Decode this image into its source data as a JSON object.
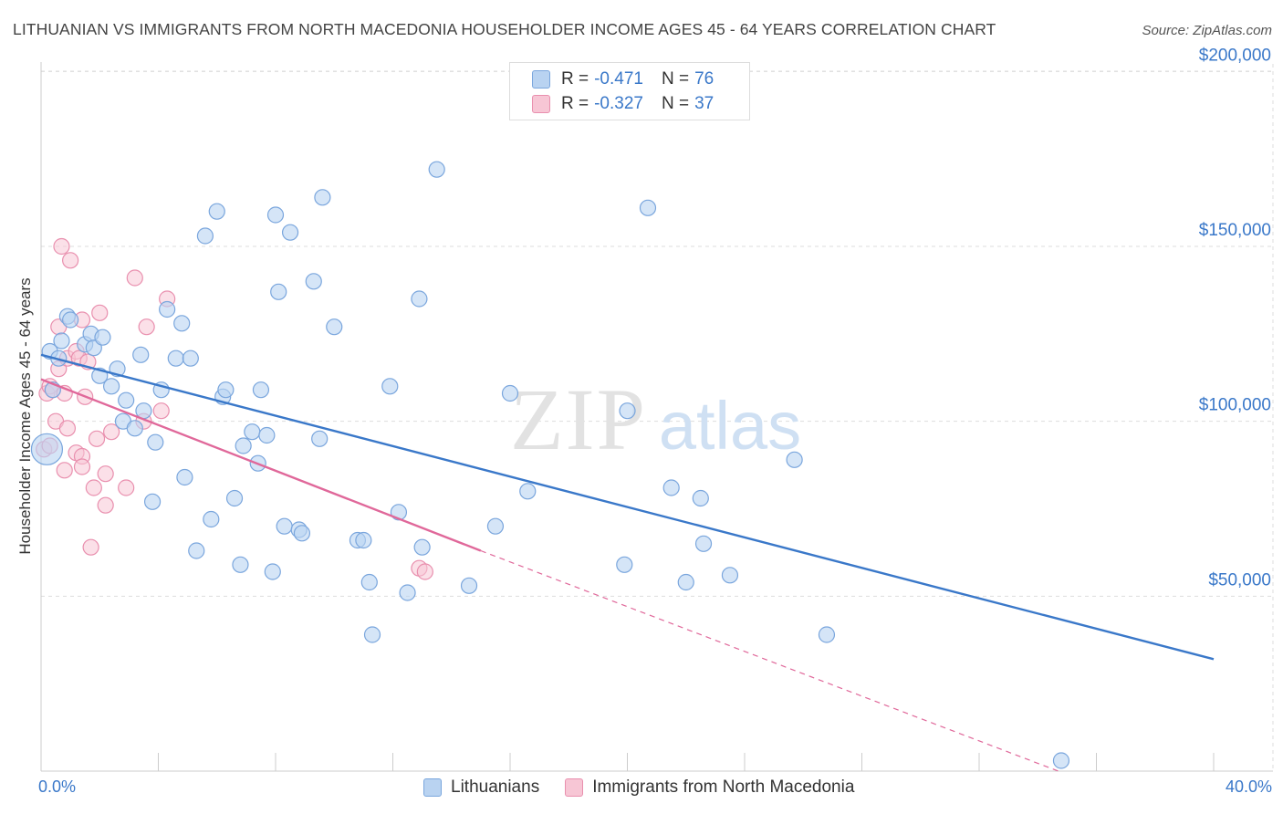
{
  "title": "LITHUANIAN VS IMMIGRANTS FROM NORTH MACEDONIA HOUSEHOLDER INCOME AGES 45 - 64 YEARS CORRELATION CHART",
  "source": "Source: ZipAtlas.com",
  "watermark": {
    "zip": "ZIP",
    "atlas": "atlas"
  },
  "colors": {
    "blue_fill": "#b9d3f1",
    "blue_stroke": "#7aa6dd",
    "blue_line": "#3a78c9",
    "pink_fill": "#f7c6d5",
    "pink_stroke": "#e98fae",
    "pink_line": "#e0689a",
    "grid": "#dddddd",
    "axis_text": "#3a78c9"
  },
  "legend_top": [
    {
      "r_label": "R =",
      "r_value": "-0.471",
      "n_label": "N =",
      "n_value": "76"
    },
    {
      "r_label": "R =",
      "r_value": "-0.327",
      "n_label": "N =",
      "n_value": "37"
    }
  ],
  "legend_bottom": [
    "Lithuanians",
    "Immigrants from North Macedonia"
  ],
  "chart_data": {
    "type": "scatter",
    "title": "LITHUANIAN VS IMMIGRANTS FROM NORTH MACEDONIA HOUSEHOLDER INCOME AGES 45 - 64 YEARS CORRELATION CHART",
    "xlabel": "",
    "ylabel": "Householder Income Ages 45 - 64 years",
    "xlim": [
      0,
      40
    ],
    "ylim": [
      0,
      210000
    ],
    "x_tick_labels": [
      "0.0%",
      "40.0%"
    ],
    "y_ticks": [
      50000,
      100000,
      150000,
      200000
    ],
    "y_tick_labels": [
      "$50,000",
      "$100,000",
      "$150,000",
      "$200,000"
    ],
    "grid": true,
    "legend": "bottom-center",
    "series": [
      {
        "name": "Lithuanians",
        "r": -0.471,
        "n": 76,
        "trend": {
          "x": [
            0,
            40
          ],
          "y": [
            119000,
            32000
          ]
        },
        "points": [
          [
            0.2,
            92000
          ],
          [
            0.3,
            120000
          ],
          [
            0.4,
            109000
          ],
          [
            0.6,
            118000
          ],
          [
            0.7,
            123000
          ],
          [
            0.9,
            130000
          ],
          [
            1.0,
            129000
          ],
          [
            1.5,
            122000
          ],
          [
            1.7,
            125000
          ],
          [
            1.8,
            121000
          ],
          [
            2.1,
            124000
          ],
          [
            2.0,
            113000
          ],
          [
            2.4,
            110000
          ],
          [
            2.6,
            115000
          ],
          [
            2.9,
            106000
          ],
          [
            2.8,
            100000
          ],
          [
            3.2,
            98000
          ],
          [
            3.4,
            119000
          ],
          [
            3.5,
            103000
          ],
          [
            3.8,
            77000
          ],
          [
            3.9,
            94000
          ],
          [
            4.1,
            109000
          ],
          [
            4.3,
            132000
          ],
          [
            4.6,
            118000
          ],
          [
            4.8,
            128000
          ],
          [
            4.9,
            84000
          ],
          [
            5.1,
            118000
          ],
          [
            5.3,
            63000
          ],
          [
            5.6,
            153000
          ],
          [
            5.8,
            72000
          ],
          [
            6.0,
            160000
          ],
          [
            6.2,
            107000
          ],
          [
            6.3,
            109000
          ],
          [
            6.6,
            78000
          ],
          [
            6.8,
            59000
          ],
          [
            6.9,
            93000
          ],
          [
            7.2,
            97000
          ],
          [
            7.4,
            88000
          ],
          [
            7.5,
            109000
          ],
          [
            7.7,
            96000
          ],
          [
            7.9,
            57000
          ],
          [
            8.0,
            159000
          ],
          [
            8.1,
            137000
          ],
          [
            8.3,
            70000
          ],
          [
            8.5,
            154000
          ],
          [
            8.8,
            69000
          ],
          [
            8.9,
            68000
          ],
          [
            9.3,
            140000
          ],
          [
            9.5,
            95000
          ],
          [
            9.6,
            164000
          ],
          [
            10.0,
            127000
          ],
          [
            10.8,
            66000
          ],
          [
            11.0,
            66000
          ],
          [
            11.2,
            54000
          ],
          [
            11.3,
            39000
          ],
          [
            11.9,
            110000
          ],
          [
            12.2,
            74000
          ],
          [
            12.5,
            51000
          ],
          [
            12.9,
            135000
          ],
          [
            13.0,
            64000
          ],
          [
            13.5,
            172000
          ],
          [
            14.6,
            53000
          ],
          [
            15.5,
            70000
          ],
          [
            16.0,
            108000
          ],
          [
            16.6,
            80000
          ],
          [
            19.9,
            59000
          ],
          [
            20.0,
            103000
          ],
          [
            20.7,
            161000
          ],
          [
            21.5,
            81000
          ],
          [
            22.0,
            54000
          ],
          [
            22.5,
            78000
          ],
          [
            22.6,
            65000
          ],
          [
            23.5,
            56000
          ],
          [
            25.7,
            89000
          ],
          [
            26.8,
            39000
          ],
          [
            34.8,
            3000
          ]
        ]
      },
      {
        "name": "Immigrants from North Macedonia",
        "r": -0.327,
        "n": 37,
        "trend": {
          "x": [
            0,
            15.0
          ],
          "y": [
            112000,
            63000
          ],
          "dashed_to": {
            "x": 34.7,
            "y": 0
          }
        },
        "points": [
          [
            0.1,
            92000
          ],
          [
            0.2,
            108000
          ],
          [
            0.3,
            110000
          ],
          [
            0.4,
            109000
          ],
          [
            0.5,
            100000
          ],
          [
            0.6,
            127000
          ],
          [
            0.6,
            115000
          ],
          [
            0.7,
            150000
          ],
          [
            0.8,
            86000
          ],
          [
            0.8,
            108000
          ],
          [
            0.9,
            98000
          ],
          [
            0.9,
            118000
          ],
          [
            1.0,
            146000
          ],
          [
            1.2,
            120000
          ],
          [
            1.2,
            91000
          ],
          [
            1.3,
            118000
          ],
          [
            1.4,
            129000
          ],
          [
            1.4,
            90000
          ],
          [
            1.4,
            87000
          ],
          [
            1.5,
            107000
          ],
          [
            1.6,
            117000
          ],
          [
            1.7,
            64000
          ],
          [
            1.8,
            81000
          ],
          [
            1.9,
            95000
          ],
          [
            2.0,
            131000
          ],
          [
            2.2,
            85000
          ],
          [
            2.2,
            76000
          ],
          [
            2.4,
            97000
          ],
          [
            2.9,
            81000
          ],
          [
            3.2,
            141000
          ],
          [
            3.5,
            100000
          ],
          [
            3.6,
            127000
          ],
          [
            4.1,
            103000
          ],
          [
            4.3,
            135000
          ],
          [
            12.9,
            58000
          ],
          [
            13.1,
            57000
          ],
          [
            0.3,
            93000
          ]
        ]
      }
    ]
  }
}
